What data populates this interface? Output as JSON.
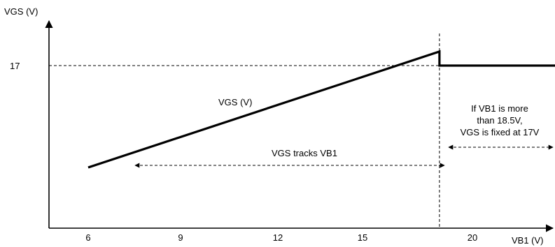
{
  "chart_data": {
    "type": "line",
    "title": "",
    "ylabel": "VGS (V)",
    "xlabel": "VB1 (V)",
    "x_ticks": [
      {
        "label": "6",
        "value": 6
      },
      {
        "label": "9",
        "value": 9
      },
      {
        "label": "12",
        "value": 12
      },
      {
        "label": "15",
        "value": 15
      },
      {
        "label": "20",
        "value": 20
      }
    ],
    "y_ticks": [
      {
        "label": "17",
        "value": 17
      }
    ],
    "series": [
      {
        "name": "VGS (V)",
        "points": [
          [
            6,
            11.2
          ],
          [
            18.5,
            17.8
          ],
          [
            18.5,
            17.0
          ],
          [
            22.2,
            17.0
          ]
        ]
      }
    ],
    "reference_lines": {
      "threshold_x": 18.5,
      "level_y": 17
    },
    "annotations": {
      "series_label": "VGS (V)",
      "tracks": "VGS tracks VB1",
      "fixed_lines": [
        "If VB1 is more",
        "than 18.5V,",
        "VGS is fixed at 17V"
      ]
    },
    "colors": {
      "line": "#000000",
      "axis": "#000000",
      "dashed": "#000000"
    }
  }
}
